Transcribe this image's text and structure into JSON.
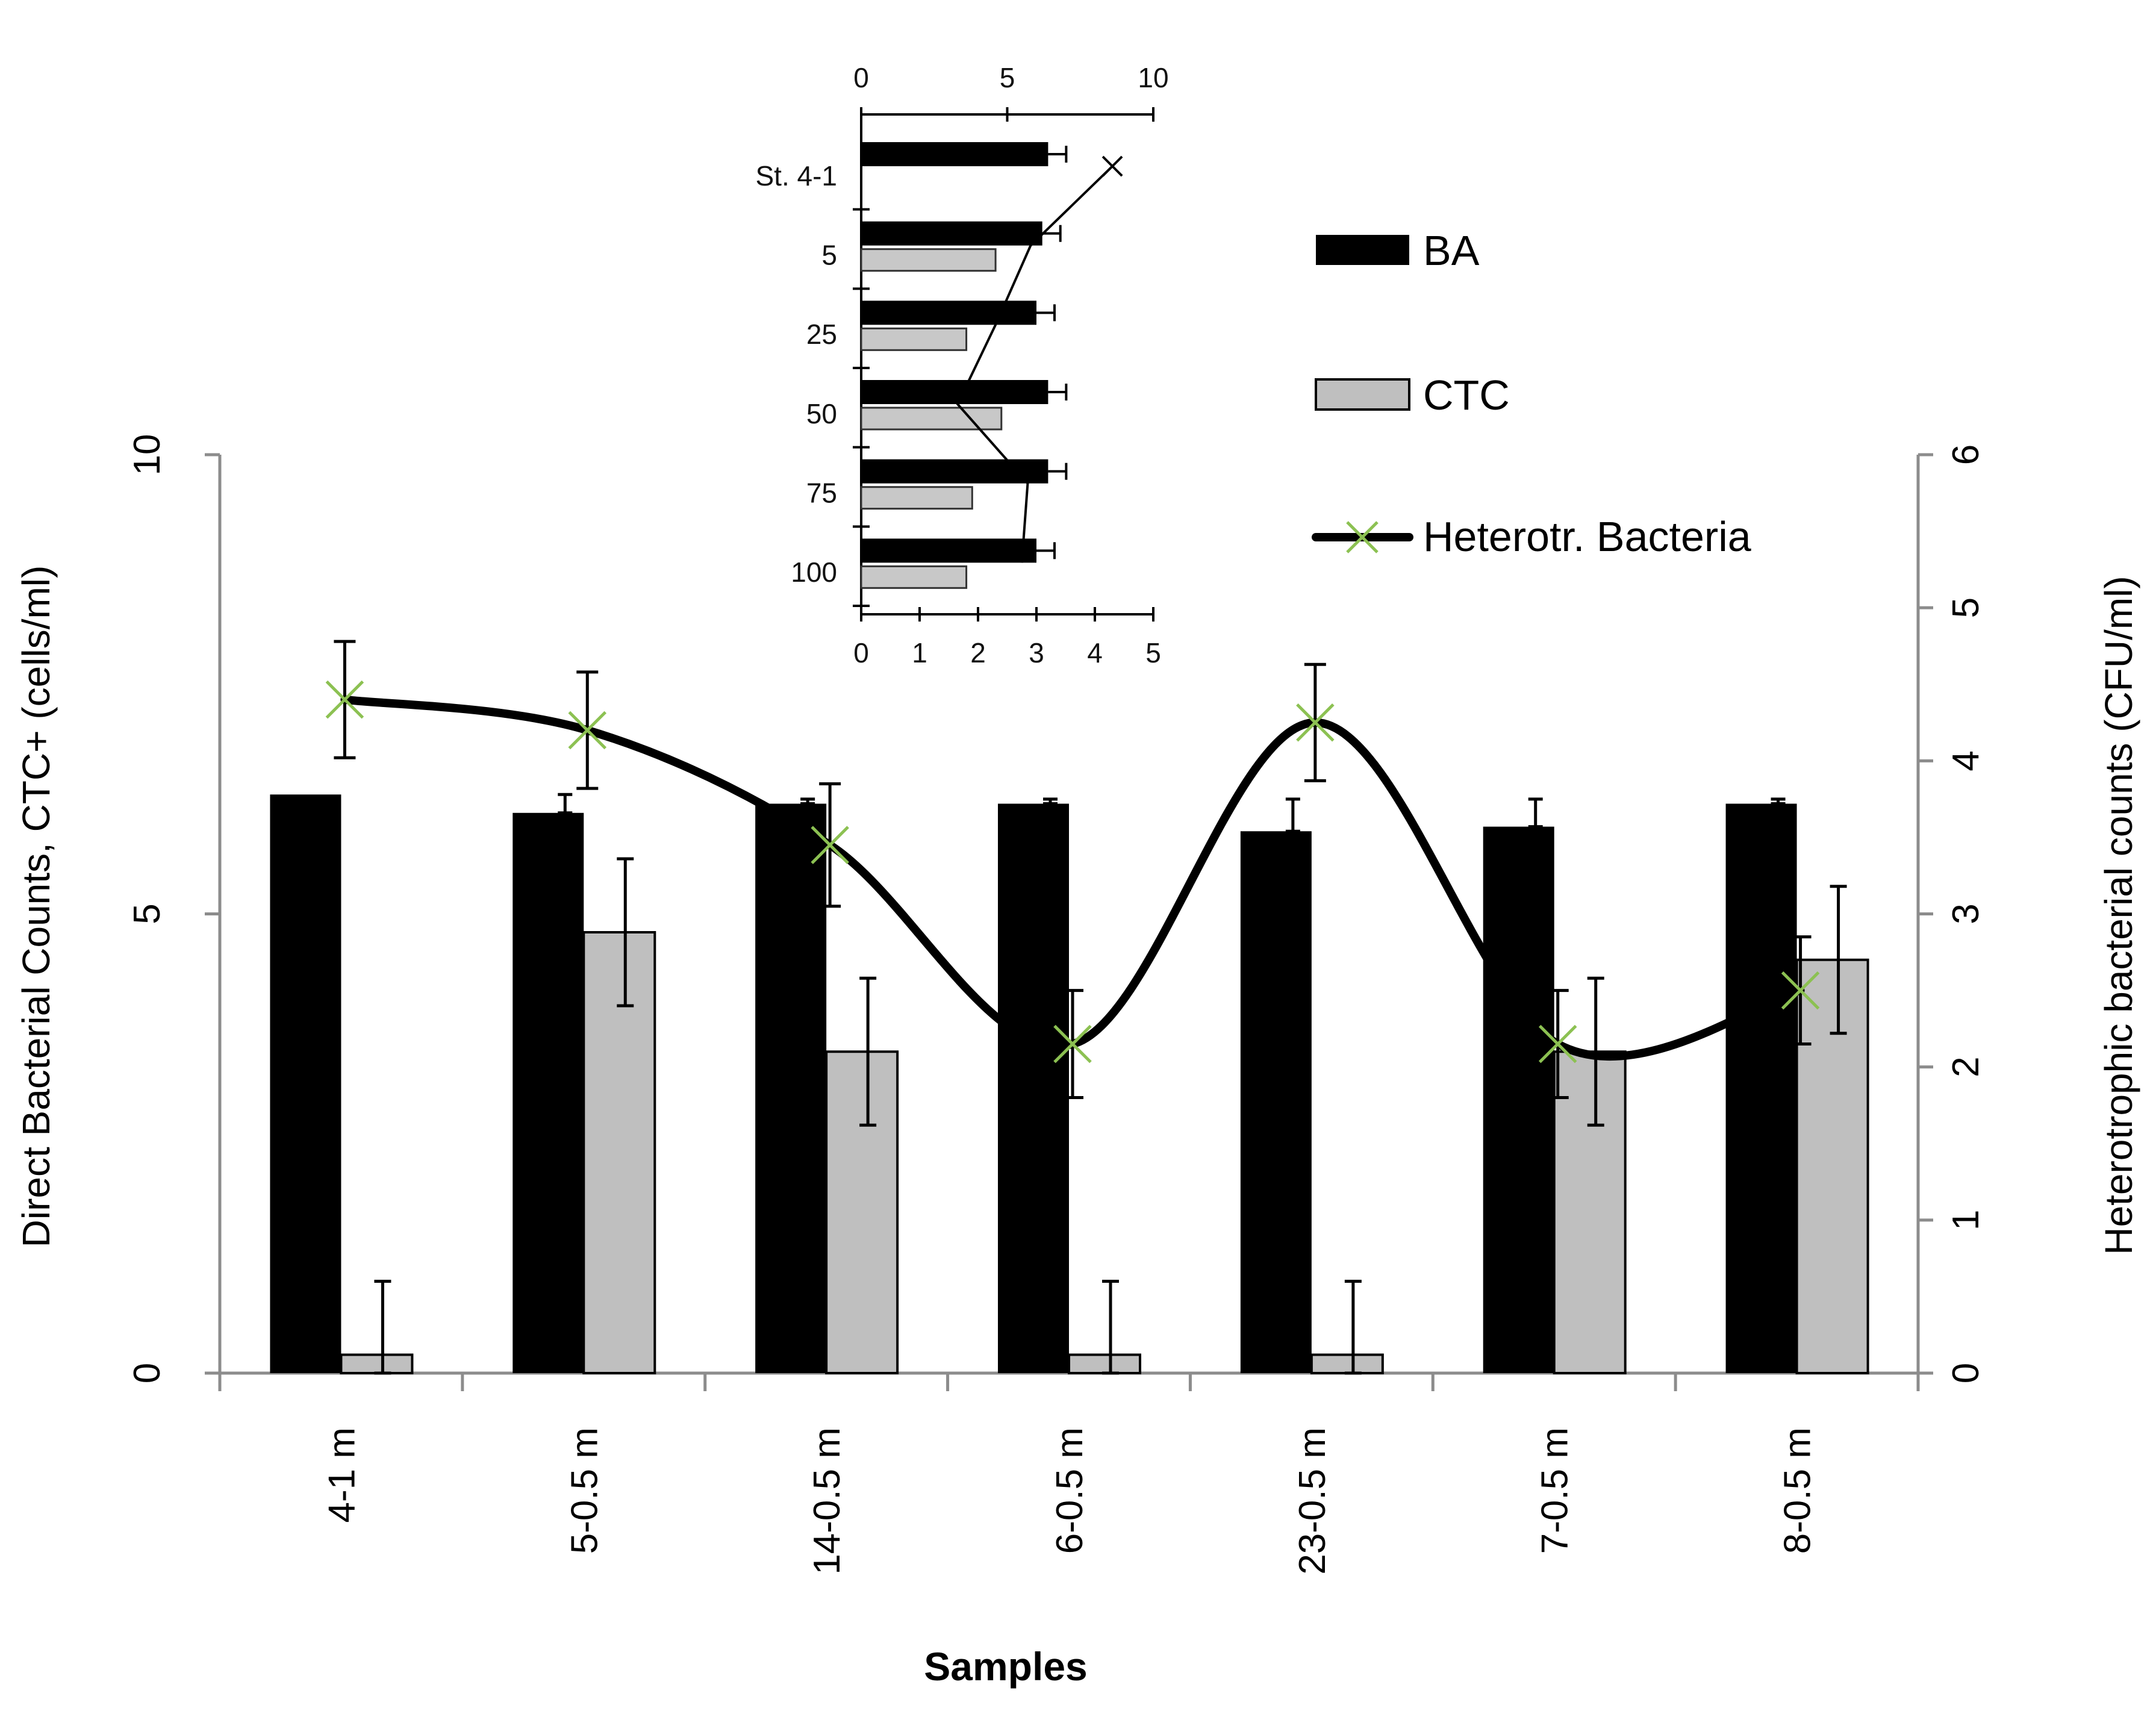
{
  "chart_data": {
    "type": "bar",
    "title": "",
    "xlabel": "Samples",
    "ylabel": "Direct Bacterial Counts, CTC+  (cells/ml)",
    "y2label": "Heterotrophic bacterial counts (CFU/ml)",
    "categories": [
      "4-1 m",
      "5-0.5 m",
      "14-0.5 m",
      "6-0.5 m",
      "23-0.5 m",
      "7-0.5 m",
      "8-0.5 m"
    ],
    "ylim": [
      0,
      10
    ],
    "yticks": [
      0,
      5,
      10
    ],
    "y2lim": [
      0,
      6
    ],
    "y2ticks": [
      0,
      1,
      2,
      3,
      4,
      5,
      6
    ],
    "series": [
      {
        "name": "BA",
        "type": "bar",
        "axis": "left",
        "values": [
          6.3,
          6.1,
          6.2,
          6.2,
          5.9,
          5.95,
          6.2
        ],
        "errors": [
          0,
          0.2,
          0.05,
          0.05,
          0.35,
          0.3,
          0.05
        ],
        "color": "#000000"
      },
      {
        "name": "CTC",
        "type": "bar",
        "axis": "left",
        "values": [
          0.2,
          4.8,
          3.5,
          0.2,
          0.2,
          3.5,
          4.5
        ],
        "errors": [
          0.8,
          0.8,
          0.8,
          0.8,
          0.8,
          0.8,
          0.8
        ],
        "color": "#bfbfbf"
      },
      {
        "name": "Heterotr. Bacteria",
        "type": "line",
        "axis": "right",
        "values": [
          4.4,
          4.2,
          3.45,
          2.15,
          4.25,
          2.15,
          2.5
        ],
        "errors": [
          0.38,
          0.38,
          0.4,
          0.35,
          0.38,
          0.35,
          0.35
        ],
        "color": "#000000",
        "marker_color": "#8cc152"
      }
    ],
    "legend": [
      "BA",
      "CTC",
      "Heterotr. Bacteria"
    ],
    "legend_position": "top-right",
    "inset": {
      "type": "horizontal-bar",
      "categories": [
        "St. 4-1",
        "5",
        "25",
        "50",
        "75",
        "100"
      ],
      "top_axis": {
        "range": [
          0,
          10
        ],
        "ticks": [
          "0",
          "5",
          "10"
        ]
      },
      "bottom_axis": {
        "range": [
          0,
          5
        ],
        "ticks": [
          "0",
          "1",
          "2",
          "3",
          "4",
          "5"
        ]
      },
      "ba_values": [
        3.2,
        3.1,
        3.0,
        3.2,
        3.2,
        3.0
      ],
      "ctc_values": [
        0,
        2.3,
        1.8,
        2.4,
        1.9,
        1.8
      ],
      "heterotr_values": [
        8.6,
        5.8,
        4.6,
        3.3,
        5.7,
        5.5
      ]
    }
  }
}
